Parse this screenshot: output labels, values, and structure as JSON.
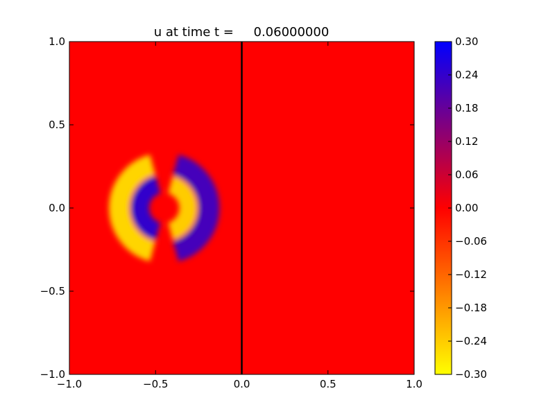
{
  "chart_data": {
    "type": "heatmap",
    "title": "u at time t =     0.06000000",
    "xlabel": "",
    "ylabel": "",
    "xlim": [
      -1.0,
      1.0
    ],
    "ylim": [
      -1.0,
      1.0
    ],
    "xticks": [
      -1.0,
      -0.5,
      0.0,
      0.5,
      1.0
    ],
    "xtick_labels": [
      "−1.0",
      "−0.5",
      "0.0",
      "0.5",
      "1.0"
    ],
    "yticks": [
      -1.0,
      -0.5,
      0.0,
      0.5,
      1.0
    ],
    "ytick_labels": [
      "−1.0",
      "−0.5",
      "0.0",
      "0.5",
      "1.0"
    ],
    "grid": false,
    "divider_line_x": 0.0,
    "colormap": {
      "stops": [
        {
          "value": -0.3,
          "color": "#ffff00"
        },
        {
          "value": 0.0,
          "color": "#ff0000"
        },
        {
          "value": 0.3,
          "color": "#0000ff"
        }
      ]
    },
    "colorbar": {
      "range": [
        -0.3,
        0.3
      ],
      "ticks": [
        0.3,
        0.24,
        0.18,
        0.12,
        0.06,
        0.0,
        -0.06,
        -0.12,
        -0.18,
        -0.24,
        -0.3
      ],
      "tick_labels": [
        "0.30",
        "0.24",
        "0.18",
        "0.12",
        "0.06",
        "0.00",
        "−0.06",
        "−0.12",
        "−0.18",
        "−0.24",
        "−0.30"
      ]
    },
    "field": {
      "description_values": "background value 0.00; ring centred at (-0.45, 0.0)",
      "background_value": 0.0,
      "ring_center": [
        -0.45,
        0.0
      ],
      "outer_ring": {
        "radius": 0.26,
        "left_value": -0.25,
        "right_value": 0.22
      },
      "inner_ring": {
        "radius": 0.14,
        "left_value": 0.24,
        "right_value": -0.24
      },
      "gap_angle_deg": 30
    }
  }
}
